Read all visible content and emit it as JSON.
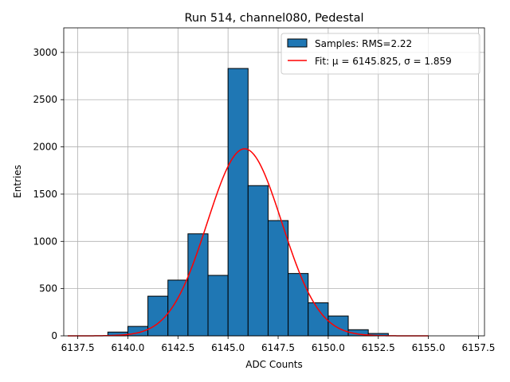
{
  "chart_data": {
    "type": "bar",
    "title": "Run 514, channel080, Pedestal",
    "xlabel": "ADC Counts",
    "ylabel": "Entries",
    "xlim": [
      6136.8,
      6157.8
    ],
    "ylim": [
      0,
      3260
    ],
    "grid": true,
    "x_ticks": [
      6137.5,
      6140.0,
      6142.5,
      6145.0,
      6147.5,
      6150.0,
      6152.5,
      6155.0,
      6157.5
    ],
    "x_tick_labels": [
      "6137.5",
      "6140.0",
      "6142.5",
      "6145.0",
      "6147.5",
      "6150.0",
      "6152.5",
      "6155.0",
      "6157.5"
    ],
    "y_ticks": [
      0,
      500,
      1000,
      1500,
      2000,
      2500,
      3000
    ],
    "y_tick_labels": [
      "0",
      "500",
      "1000",
      "1500",
      "2000",
      "2500",
      "3000"
    ],
    "histogram": {
      "name": "Samples: RMS=2.22",
      "color": "#1f77b4",
      "edge_color": "#000000",
      "bin_edges": [
        6139.0,
        6140.0,
        6141.0,
        6142.0,
        6143.0,
        6144.0,
        6145.0,
        6146.0,
        6147.0,
        6148.0,
        6149.0,
        6150.0,
        6151.0,
        6152.0,
        6153.0
      ],
      "counts": [
        40,
        100,
        420,
        590,
        1080,
        640,
        2830,
        1590,
        1220,
        660,
        350,
        210,
        65,
        25
      ]
    },
    "fit": {
      "name": "Fit: μ = 6145.825, σ = 1.859",
      "color": "#ff0000",
      "mu": 6145.825,
      "sigma": 1.859,
      "amplitude": 1980,
      "x_range": [
        6137.0,
        6155.0
      ]
    },
    "legend": {
      "position": "top-right",
      "entries": [
        "Samples: RMS=2.22",
        "Fit: μ = 6145.825, σ = 1.859"
      ]
    }
  }
}
